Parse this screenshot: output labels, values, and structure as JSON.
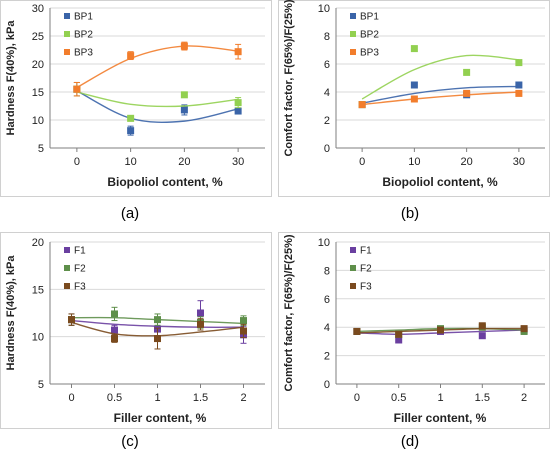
{
  "colors": {
    "BP1": "#3A64A8",
    "BP2": "#92D050",
    "BP3": "#F27D2C",
    "F1": "#6A3FA0",
    "F2": "#5E8F4A",
    "F3": "#7A4A1E",
    "axis": "#7F7F7F",
    "grid": "#D9D9D9",
    "text": "#222222"
  },
  "panels": [
    {
      "letter": "(a)",
      "chart_data": {
        "type": "scatter",
        "xlabel": "Biopoliol content, %",
        "ylabel": "Hardness F(40%), kPa",
        "xlim": [
          -5,
          35
        ],
        "ylim": [
          5,
          30
        ],
        "xticks": [
          0,
          10,
          20,
          30
        ],
        "yticks": [
          5,
          10,
          15,
          20,
          25,
          30
        ],
        "legend": "top-left",
        "series": [
          {
            "name": "BP1",
            "x": [
              0,
              10,
              20,
              30
            ],
            "y": [
              15.5,
              8.1,
              11.8,
              11.6
            ],
            "err": [
              1.2,
              0.8,
              0.9,
              0.5
            ],
            "trend": [
              15.2,
              10.3,
              9.8,
              12.0
            ]
          },
          {
            "name": "BP2",
            "x": [
              0,
              10,
              20,
              30
            ],
            "y": [
              15.5,
              10.3,
              14.5,
              13.1
            ],
            "err": [
              1.2,
              0.5,
              0.4,
              0.9
            ],
            "trend": [
              15.0,
              12.8,
              12.5,
              13.7
            ]
          },
          {
            "name": "BP3",
            "x": [
              0,
              10,
              20,
              30
            ],
            "y": [
              15.5,
              21.5,
              23.2,
              22.2
            ],
            "err": [
              1.2,
              0.7,
              0.7,
              1.3
            ],
            "trend": [
              15.8,
              21.0,
              23.2,
              22.3
            ]
          }
        ]
      }
    },
    {
      "letter": "(b)",
      "chart_data": {
        "type": "scatter",
        "xlabel": "Biopoliol content, %",
        "ylabel": "Comfort factor, F(65%)/F(25%)",
        "xlim": [
          -5,
          35
        ],
        "ylim": [
          0,
          10
        ],
        "xticks": [
          0,
          10,
          20,
          30
        ],
        "yticks": [
          0,
          2,
          4,
          6,
          8,
          10
        ],
        "legend": "top-left",
        "series": [
          {
            "name": "BP1",
            "x": [
              0,
              10,
              20,
              30
            ],
            "y": [
              3.1,
              4.5,
              3.8,
              4.5
            ],
            "trend": [
              3.2,
              3.9,
              4.3,
              4.4
            ]
          },
          {
            "name": "BP2",
            "x": [
              0,
              10,
              20,
              30
            ],
            "y": [
              3.1,
              7.1,
              5.4,
              6.1
            ],
            "trend": [
              3.5,
              5.6,
              6.6,
              6.3
            ]
          },
          {
            "name": "BP3",
            "x": [
              0,
              10,
              20,
              30
            ],
            "y": [
              3.1,
              3.5,
              3.9,
              3.9
            ],
            "trend": [
              3.1,
              3.5,
              3.8,
              4.0
            ]
          }
        ]
      }
    },
    {
      "letter": "(c)",
      "chart_data": {
        "type": "scatter",
        "xlabel": "Filler content, %",
        "ylabel": "Hardness F(40%), kPa",
        "xlim": [
          -0.25,
          2.25
        ],
        "ylim": [
          5,
          20
        ],
        "xticks": [
          0,
          0.5,
          1,
          1.5,
          2
        ],
        "yticks": [
          5,
          10,
          15,
          20
        ],
        "legend": "top-left",
        "series": [
          {
            "name": "F1",
            "x": [
              0,
              0.5,
              1,
              1.5,
              2
            ],
            "y": [
              11.8,
              10.7,
              10.8,
              12.5,
              10.2
            ],
            "err": [
              0.6,
              0.5,
              0.7,
              1.3,
              0.9
            ],
            "trend": [
              11.7,
              11.3,
              11.1,
              11.0,
              11.0
            ]
          },
          {
            "name": "F2",
            "x": [
              0,
              0.5,
              1,
              1.5,
              2
            ],
            "y": [
              11.8,
              12.4,
              11.8,
              11.5,
              11.7
            ],
            "err": [
              0.6,
              0.7,
              0.6,
              0.6,
              0.5
            ],
            "trend": [
              12.0,
              12.0,
              11.8,
              11.6,
              11.4
            ]
          },
          {
            "name": "F3",
            "x": [
              0,
              0.5,
              1,
              1.5,
              2
            ],
            "y": [
              11.8,
              9.8,
              9.8,
              11.3,
              10.6
            ],
            "err": [
              0.6,
              0.4,
              1.1,
              0.6,
              0.7
            ],
            "trend": [
              11.5,
              10.3,
              10.1,
              10.5,
              11.0
            ]
          }
        ]
      }
    },
    {
      "letter": "(d)",
      "chart_data": {
        "type": "scatter",
        "xlabel": "Filler content, %",
        "ylabel": "Comfort factor, F(65%)/F(25%)",
        "xlim": [
          -0.25,
          2.25
        ],
        "ylim": [
          0,
          10
        ],
        "xticks": [
          0,
          0.5,
          1,
          1.5,
          2
        ],
        "yticks": [
          0,
          2,
          4,
          6,
          8,
          10
        ],
        "legend": "top-left",
        "series": [
          {
            "name": "F1",
            "x": [
              0,
              0.5,
              1,
              1.5,
              2
            ],
            "y": [
              3.7,
              3.1,
              3.7,
              3.4,
              3.8
            ],
            "trend": [
              3.6,
              3.5,
              3.6,
              3.7,
              3.8
            ]
          },
          {
            "name": "F2",
            "x": [
              0,
              0.5,
              1,
              1.5,
              2
            ],
            "y": [
              3.7,
              3.5,
              3.9,
              4.0,
              3.7
            ],
            "trend": [
              3.7,
              3.8,
              3.9,
              3.9,
              3.8
            ]
          },
          {
            "name": "F3",
            "x": [
              0,
              0.5,
              1,
              1.5,
              2
            ],
            "y": [
              3.7,
              3.5,
              3.8,
              4.1,
              3.9
            ],
            "trend": [
              3.6,
              3.7,
              3.8,
              3.9,
              3.9
            ]
          }
        ]
      }
    }
  ]
}
